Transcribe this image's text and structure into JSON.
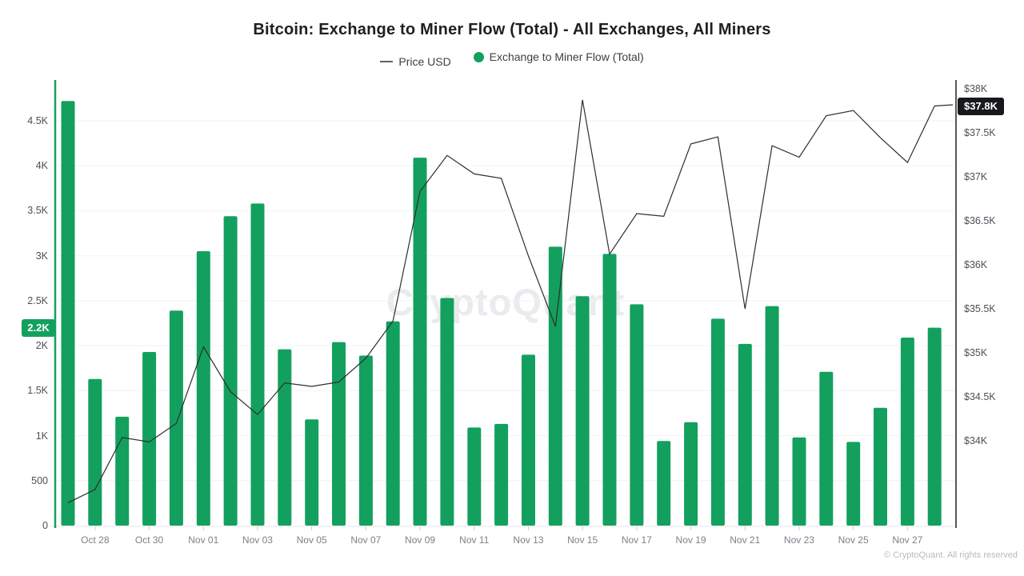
{
  "title": "Bitcoin: Exchange to Miner Flow (Total) - All Exchanges, All Miners",
  "legend": {
    "price_label": "Price USD",
    "flow_label": "Exchange to Miner Flow (Total)"
  },
  "watermark": "CryptoQuant",
  "copyright": "© CryptoQuant. All rights reserved",
  "colors": {
    "bar_green": "#13A05E",
    "price_line": "#2e2e2e",
    "gridline": "#f1f2f4",
    "right_axis_line": "#202124",
    "badge_dark": "#17191c"
  },
  "left_axis": {
    "tick_labels": [
      "0",
      "500",
      "1K",
      "1.5K",
      "2K",
      "2.5K",
      "3K",
      "3.5K",
      "4K",
      "4.5K"
    ],
    "tick_values": [
      0,
      500,
      1000,
      1500,
      2000,
      2500,
      3000,
      3500,
      4000,
      4500
    ],
    "badge": {
      "label": "2.2K",
      "value": 2200
    }
  },
  "right_axis": {
    "tick_labels": [
      "$34K",
      "$34.5K",
      "$35K",
      "$35.5K",
      "$36K",
      "$36.5K",
      "$37K",
      "$37.5K",
      "$38K"
    ],
    "tick_values": [
      34000,
      34500,
      35000,
      35500,
      36000,
      36500,
      37000,
      37500,
      38000
    ],
    "badge": {
      "label": "$37.8K",
      "value": 37800
    }
  },
  "chart_data": {
    "type": "bar+line",
    "title": "Bitcoin: Exchange to Miner Flow (Total) - All Exchanges, All Miners",
    "categories": [
      "Oct 27",
      "Oct 28",
      "Oct 29",
      "Oct 30",
      "Oct 31",
      "Nov 01",
      "Nov 02",
      "Nov 03",
      "Nov 04",
      "Nov 05",
      "Nov 06",
      "Nov 07",
      "Nov 08",
      "Nov 09",
      "Nov 10",
      "Nov 11",
      "Nov 12",
      "Nov 13",
      "Nov 14",
      "Nov 15",
      "Nov 16",
      "Nov 17",
      "Nov 18",
      "Nov 19",
      "Nov 20",
      "Nov 21",
      "Nov 22",
      "Nov 23",
      "Nov 24",
      "Nov 25",
      "Nov 26",
      "Nov 27",
      "Nov 28"
    ],
    "x_tick_labels": [
      "Oct 28",
      "Oct 30",
      "Nov 01",
      "Nov 03",
      "Nov 05",
      "Nov 07",
      "Nov 09",
      "Nov 11",
      "Nov 13",
      "Nov 15",
      "Nov 17",
      "Nov 19",
      "Nov 21",
      "Nov 23",
      "Nov 25",
      "Nov 27"
    ],
    "x_label_start_index": 1,
    "x_label_every": 2,
    "series": [
      {
        "name": "Exchange to Miner Flow (Total)",
        "type": "bar",
        "axis": "left",
        "values": [
          4720,
          1630,
          1210,
          1930,
          2390,
          3050,
          3440,
          3580,
          1960,
          1180,
          2040,
          1890,
          2270,
          4090,
          2530,
          1090,
          1130,
          1900,
          3100,
          2550,
          3020,
          2460,
          940,
          1150,
          2300,
          2020,
          2440,
          980,
          1710,
          930,
          1310,
          2090,
          2200
        ]
      },
      {
        "name": "Price USD",
        "type": "line",
        "axis": "right",
        "values": [
          33300,
          33450,
          34040,
          33990,
          34200,
          35070,
          34560,
          34300,
          34660,
          34620,
          34670,
          34940,
          35360,
          36830,
          37240,
          37030,
          36980,
          36100,
          35300,
          37870,
          36120,
          36580,
          36550,
          37370,
          37450,
          35500,
          37350,
          37220,
          37690,
          37750,
          37440,
          37160,
          37800
        ]
      }
    ],
    "left_ylim": [
      0,
      4950
    ],
    "right_ylim": [
      33040,
      38095
    ],
    "grid": true,
    "legend_position": "top"
  }
}
